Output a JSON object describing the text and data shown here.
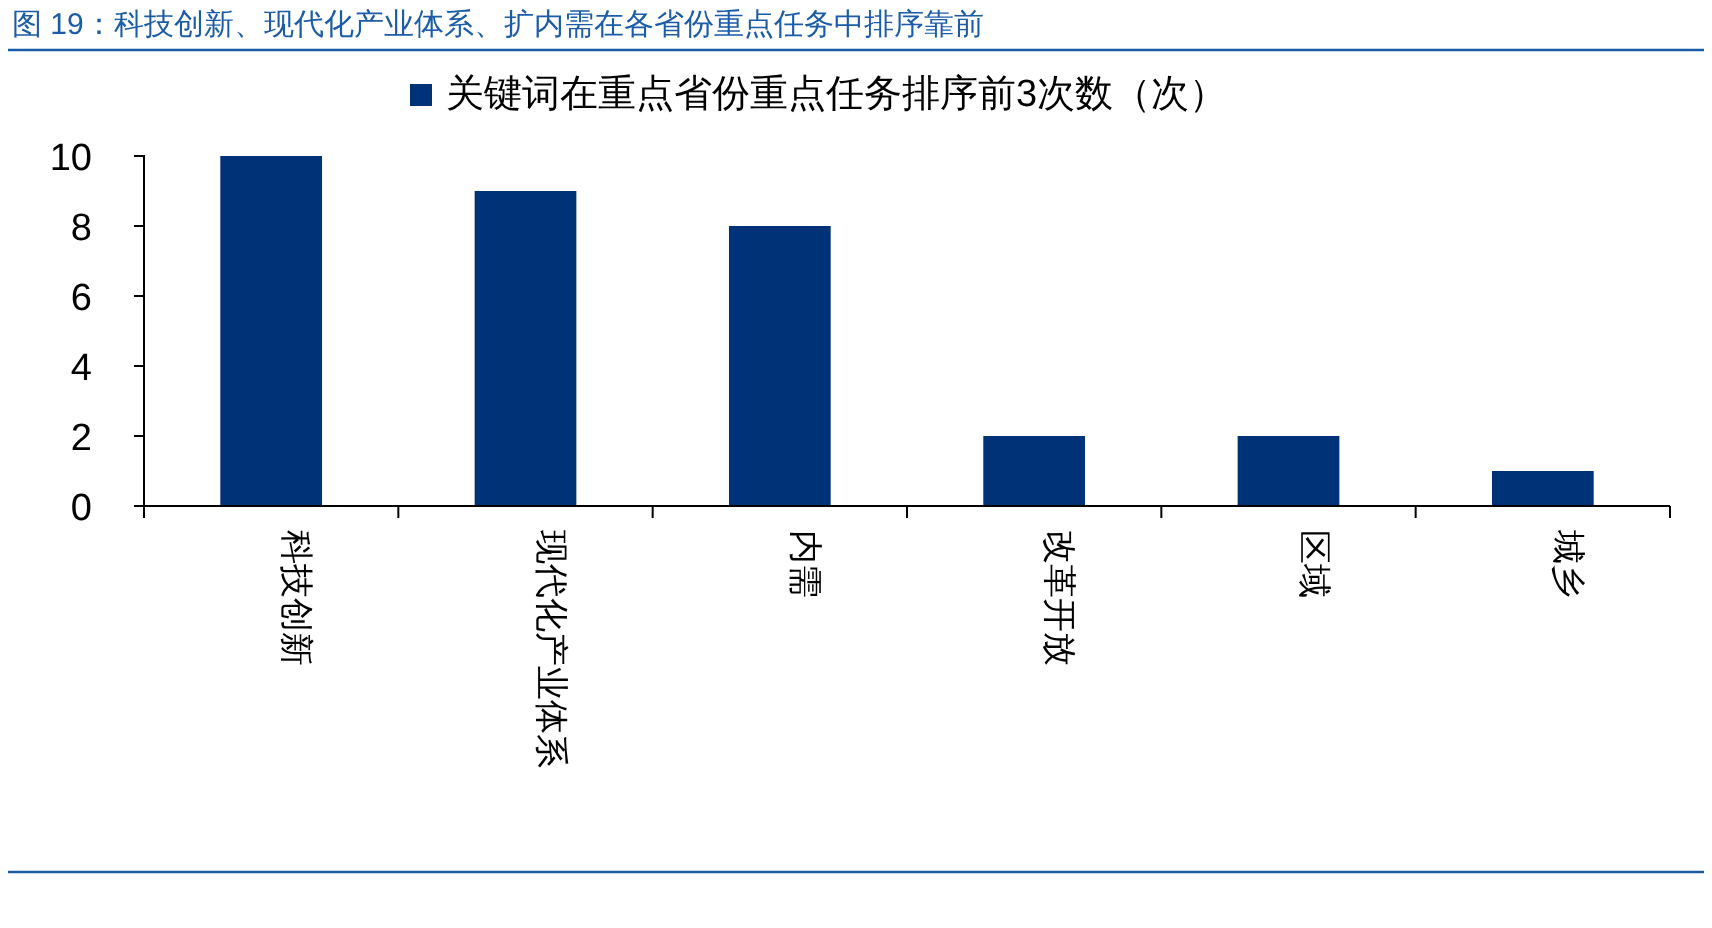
{
  "chart_data": {
    "type": "bar",
    "title": "图 19：科技创新、现代化产业体系、扩内需在各省份重点任务中排序靠前",
    "categories": [
      "科技创新",
      "现代化产业体系",
      "内需",
      "改革开放",
      "区域",
      "城乡"
    ],
    "series": [
      {
        "name": "关键词在重点省份重点任务排序前3次数（次）",
        "color": "#003278",
        "values": [
          10,
          9,
          8,
          2,
          2,
          1
        ]
      }
    ],
    "ylim": [
      0,
      10
    ],
    "yticks": [
      0,
      2,
      4,
      6,
      8,
      10
    ],
    "grid": false,
    "legend": "top"
  }
}
